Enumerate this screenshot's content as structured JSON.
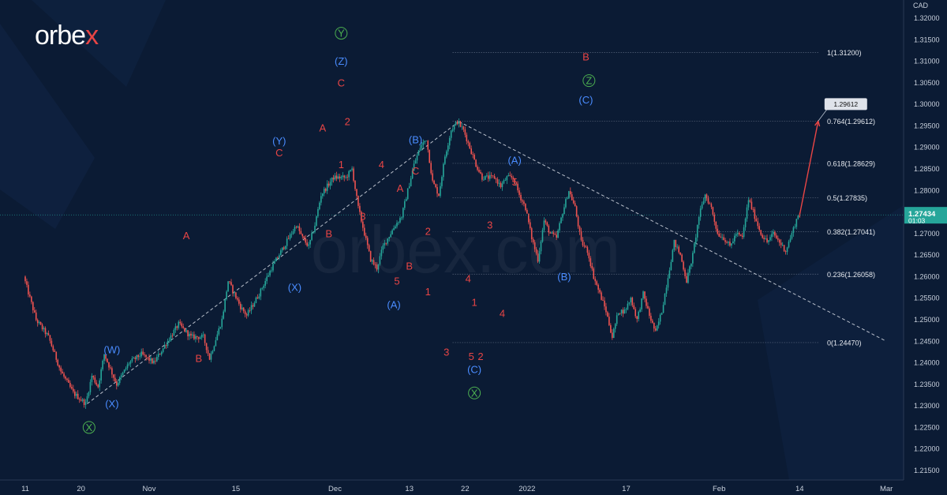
{
  "brand": {
    "logo_text": "orbe",
    "logo_x": "x",
    "watermark": "orbex.com"
  },
  "colors": {
    "background": "#0b1b34",
    "up_candle": "#26a69a",
    "down_candle": "#ef5350",
    "wave_red": "#e84545",
    "wave_blue": "#4a8cff",
    "wave_green": "#4caf50",
    "fib_line": "#9aa5b8",
    "axis_text": "#c8d0dc",
    "projection": "#e84545",
    "price_tag": "#1e3a5f"
  },
  "chart_data": {
    "type": "candlestick",
    "currency": "CAD",
    "ylim": [
      1.2125,
      1.3245
    ],
    "y_ticks": [
      "1.32000",
      "1.31500",
      "1.31000",
      "1.30500",
      "1.30000",
      "1.29500",
      "1.29000",
      "1.28500",
      "1.28000",
      "1.27500",
      "1.27000",
      "1.26500",
      "1.26000",
      "1.25500",
      "1.25000",
      "1.24500",
      "1.24000",
      "1.23500",
      "1.23000",
      "1.22500",
      "1.22000",
      "1.21500"
    ],
    "x_ticks": [
      {
        "label": "11",
        "t": 0
      },
      {
        "label": "20",
        "t": 9
      },
      {
        "label": "Nov",
        "t": 20
      },
      {
        "label": "15",
        "t": 34
      },
      {
        "label": "Dec",
        "t": 50
      },
      {
        "label": "13",
        "t": 62
      },
      {
        "label": "22",
        "t": 71
      },
      {
        "label": "2022",
        "t": 81
      },
      {
        "label": "17",
        "t": 97
      },
      {
        "label": "Feb",
        "t": 112
      },
      {
        "label": "14",
        "t": 125
      },
      {
        "label": "Mar",
        "t": 139
      }
    ],
    "current_price": "1.27434",
    "countdown": "01:03",
    "price_path": [
      [
        0,
        1.26
      ],
      [
        2,
        1.25
      ],
      [
        4,
        1.246
      ],
      [
        6,
        1.238
      ],
      [
        8,
        1.233
      ],
      [
        10,
        1.2305
      ],
      [
        11,
        1.237
      ],
      [
        12,
        1.2345
      ],
      [
        13,
        1.242
      ],
      [
        15,
        1.235
      ],
      [
        17,
        1.24
      ],
      [
        19,
        1.242
      ],
      [
        21,
        1.24
      ],
      [
        23,
        1.2445
      ],
      [
        25,
        1.249
      ],
      [
        27,
        1.246
      ],
      [
        29,
        1.246
      ],
      [
        30,
        1.241
      ],
      [
        32,
        1.25
      ],
      [
        33,
        1.259
      ],
      [
        34,
        1.256
      ],
      [
        35,
        1.253
      ],
      [
        36,
        1.251
      ],
      [
        38,
        1.256
      ],
      [
        40,
        1.262
      ],
      [
        42,
        1.267
      ],
      [
        44,
        1.272
      ],
      [
        45,
        1.269
      ],
      [
        46,
        1.267
      ],
      [
        47,
        1.272
      ],
      [
        48,
        1.279
      ],
      [
        50,
        1.283
      ],
      [
        52,
        1.283
      ],
      [
        53,
        1.285
      ],
      [
        54,
        1.276
      ],
      [
        55,
        1.27
      ],
      [
        56,
        1.264
      ],
      [
        57,
        1.262
      ],
      [
        58,
        1.267
      ],
      [
        60,
        1.272
      ],
      [
        61,
        1.274
      ],
      [
        62,
        1.28
      ],
      [
        63,
        1.286
      ],
      [
        64,
        1.29
      ],
      [
        65,
        1.292
      ],
      [
        66,
        1.282
      ],
      [
        67,
        1.279
      ],
      [
        68,
        1.288
      ],
      [
        69,
        1.294
      ],
      [
        70,
        1.296
      ],
      [
        71,
        1.294
      ],
      [
        72,
        1.29
      ],
      [
        73,
        1.286
      ],
      [
        74,
        1.283
      ],
      [
        76,
        1.283
      ],
      [
        77,
        1.281
      ],
      [
        78,
        1.283
      ],
      [
        79,
        1.283
      ],
      [
        80,
        1.279
      ],
      [
        81,
        1.276
      ],
      [
        82,
        1.269
      ],
      [
        83,
        1.264
      ],
      [
        84,
        1.273
      ],
      [
        85,
        1.27
      ],
      [
        86,
        1.269
      ],
      [
        87,
        1.275
      ],
      [
        88,
        1.28
      ],
      [
        89,
        1.276
      ],
      [
        90,
        1.268
      ],
      [
        91,
        1.266
      ],
      [
        92,
        1.26
      ],
      [
        93,
        1.256
      ],
      [
        94,
        1.252
      ],
      [
        95,
        1.246
      ],
      [
        96,
        1.252
      ],
      [
        97,
        1.252
      ],
      [
        98,
        1.255
      ],
      [
        99,
        1.25
      ],
      [
        100,
        1.256
      ],
      [
        101,
        1.251
      ],
      [
        102,
        1.247
      ],
      [
        103,
        1.252
      ],
      [
        104,
        1.26
      ],
      [
        105,
        1.268
      ],
      [
        106,
        1.265
      ],
      [
        107,
        1.259
      ],
      [
        108,
        1.265
      ],
      [
        109,
        1.274
      ],
      [
        110,
        1.279
      ],
      [
        111,
        1.276
      ],
      [
        112,
        1.27
      ],
      [
        113,
        1.269
      ],
      [
        114,
        1.267
      ],
      [
        115,
        1.27
      ],
      [
        116,
        1.269
      ],
      [
        117,
        1.278
      ],
      [
        118,
        1.274
      ],
      [
        119,
        1.27
      ],
      [
        120,
        1.268
      ],
      [
        121,
        1.27
      ],
      [
        122,
        1.268
      ],
      [
        123,
        1.266
      ],
      [
        124,
        1.27
      ],
      [
        125,
        1.2743
      ]
    ],
    "projection": {
      "from": [
        125,
        1.2743
      ],
      "to": [
        128,
        1.29612
      ],
      "target_label": "1.29612"
    },
    "trendlines": [
      {
        "from": [
          10,
          1.2305
        ],
        "to": [
          70,
          1.296
        ]
      },
      {
        "from": [
          70,
          1.296
        ],
        "to": [
          139,
          1.245
        ]
      }
    ],
    "fib_levels": [
      {
        "label": "1(1.31200)",
        "price": 1.312
      },
      {
        "label": "0.764(1.29612)",
        "price": 1.29612
      },
      {
        "label": "0.618(1.28629)",
        "price": 1.28629
      },
      {
        "label": "0.5(1.27835)",
        "price": 1.27835
      },
      {
        "label": "0.382(1.27041)",
        "price": 1.27041
      },
      {
        "label": "0.236(1.26058)",
        "price": 1.26058
      },
      {
        "label": "0(1.24470)",
        "price": 1.2447
      }
    ],
    "fib_range_t": [
      69,
      128
    ],
    "wave_labels": [
      {
        "text": "X",
        "t": 10.3,
        "p": 1.225,
        "color": "green",
        "circled": true
      },
      {
        "text": "(W)",
        "t": 14,
        "p": 1.243,
        "color": "blue"
      },
      {
        "text": "(X)",
        "t": 14,
        "p": 1.2305,
        "color": "blue"
      },
      {
        "text": "A",
        "t": 26,
        "p": 1.2695,
        "color": "red"
      },
      {
        "text": "B",
        "t": 28,
        "p": 1.241,
        "color": "red"
      },
      {
        "text": "(Y)",
        "t": 41,
        "p": 1.2915,
        "color": "blue"
      },
      {
        "text": "C",
        "t": 41,
        "p": 1.2888,
        "color": "red"
      },
      {
        "text": "(X)",
        "t": 43.5,
        "p": 1.2575,
        "color": "blue"
      },
      {
        "text": "A",
        "t": 48,
        "p": 1.2945,
        "color": "red"
      },
      {
        "text": "B",
        "t": 49,
        "p": 1.27,
        "color": "red"
      },
      {
        "text": "Y",
        "t": 51,
        "p": 1.3165,
        "color": "green",
        "circled": true
      },
      {
        "text": "(Z)",
        "t": 51,
        "p": 1.31,
        "color": "blue"
      },
      {
        "text": "C",
        "t": 51,
        "p": 1.305,
        "color": "red"
      },
      {
        "text": "2",
        "t": 52,
        "p": 1.296,
        "color": "red"
      },
      {
        "text": "1",
        "t": 51,
        "p": 1.286,
        "color": "red"
      },
      {
        "text": "3",
        "t": 54.5,
        "p": 1.274,
        "color": "red"
      },
      {
        "text": "4",
        "t": 57.5,
        "p": 1.286,
        "color": "red"
      },
      {
        "text": "A",
        "t": 60.5,
        "p": 1.2805,
        "color": "red"
      },
      {
        "text": "(B)",
        "t": 63,
        "p": 1.2918,
        "color": "blue"
      },
      {
        "text": "C",
        "t": 63,
        "p": 1.2845,
        "color": "red"
      },
      {
        "text": "2",
        "t": 65,
        "p": 1.2705,
        "color": "red"
      },
      {
        "text": "5",
        "t": 60,
        "p": 1.259,
        "color": "red"
      },
      {
        "text": "B",
        "t": 62,
        "p": 1.2625,
        "color": "red"
      },
      {
        "text": "(A)",
        "t": 59.5,
        "p": 1.2535,
        "color": "blue"
      },
      {
        "text": "1",
        "t": 65,
        "p": 1.2565,
        "color": "red"
      },
      {
        "text": "3",
        "t": 68,
        "p": 1.2425,
        "color": "red"
      },
      {
        "text": "4",
        "t": 71.5,
        "p": 1.2595,
        "color": "red"
      },
      {
        "text": "1",
        "t": 72.5,
        "p": 1.254,
        "color": "red"
      },
      {
        "text": "5",
        "t": 72,
        "p": 1.2415,
        "color": "red"
      },
      {
        "text": "2",
        "t": 73.5,
        "p": 1.2415,
        "color": "red"
      },
      {
        "text": "(C)",
        "t": 72.5,
        "p": 1.2385,
        "color": "blue"
      },
      {
        "text": "X",
        "t": 72.5,
        "p": 1.233,
        "color": "green",
        "circled": true
      },
      {
        "text": "3",
        "t": 75,
        "p": 1.272,
        "color": "red"
      },
      {
        "text": "4",
        "t": 77,
        "p": 1.2515,
        "color": "red"
      },
      {
        "text": "(A)",
        "t": 79,
        "p": 1.287,
        "color": "blue"
      },
      {
        "text": "5",
        "t": 79,
        "p": 1.282,
        "color": "red"
      },
      {
        "text": "(B)",
        "t": 87,
        "p": 1.26,
        "color": "blue"
      },
      {
        "text": "B",
        "t": 90.5,
        "p": 1.311,
        "color": "red"
      },
      {
        "text": "Z",
        "t": 91,
        "p": 1.3055,
        "color": "green",
        "circled": true
      },
      {
        "text": "(C)",
        "t": 90.5,
        "p": 1.301,
        "color": "blue"
      }
    ]
  }
}
